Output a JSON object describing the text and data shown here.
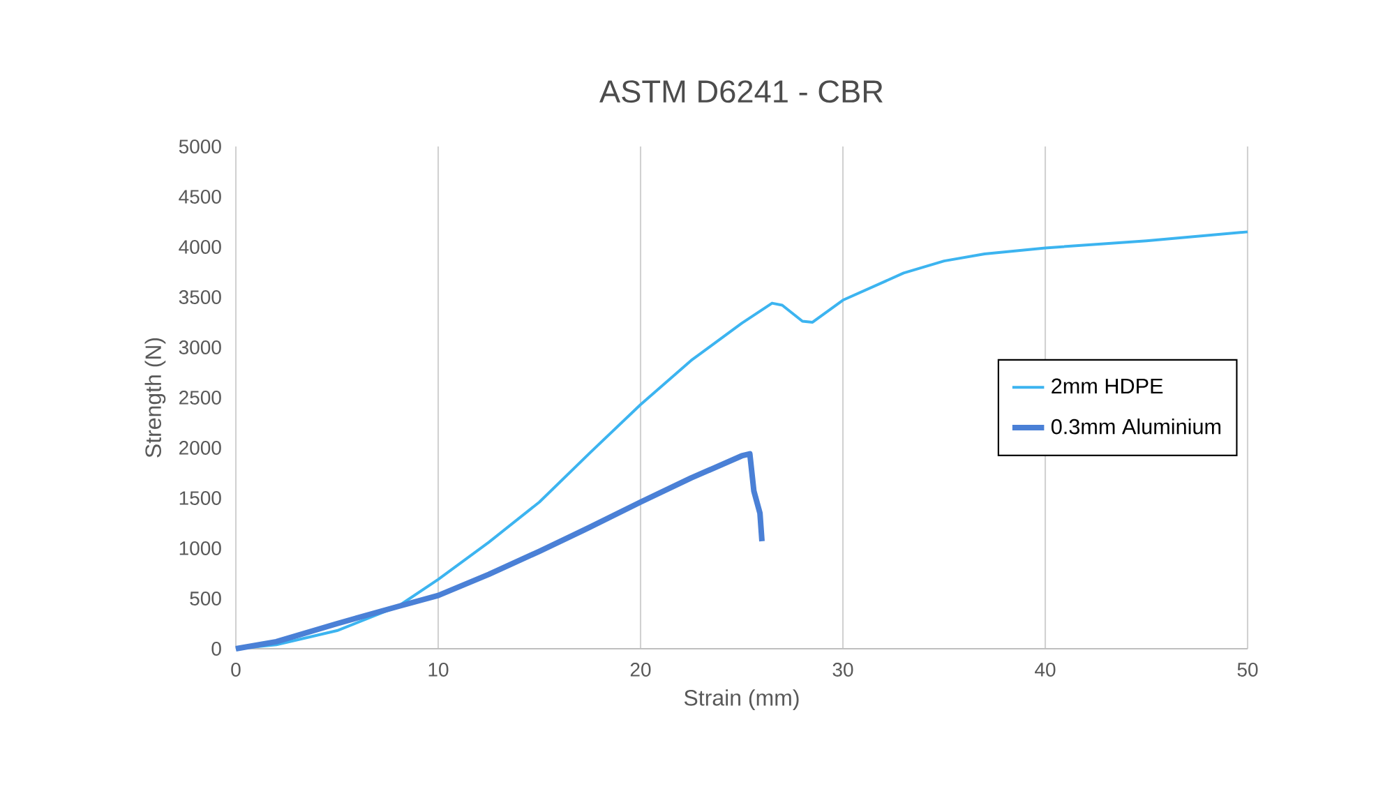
{
  "chart_data": {
    "type": "line",
    "title": "ASTM D6241 - CBR",
    "xlabel": "Strain (mm)",
    "ylabel": "Strength (N)",
    "xlim": [
      0,
      50
    ],
    "xticks": [
      0,
      10,
      20,
      30,
      40,
      50
    ],
    "ylim": [
      0,
      5000
    ],
    "yticks": [
      0,
      500,
      1000,
      1500,
      2000,
      2500,
      3000,
      3500,
      4000,
      4500,
      5000
    ],
    "grid": "x",
    "legend": "right",
    "series": [
      {
        "name": "2mm HDPE",
        "color": "#3cb4f0",
        "x": [
          0,
          2,
          5,
          8,
          10,
          12.5,
          15,
          17.5,
          20,
          22.5,
          25,
          26.5,
          27,
          28,
          28.5,
          30,
          33,
          35,
          37,
          40,
          45,
          50
        ],
        "values": [
          0,
          40,
          180,
          420,
          690,
          1060,
          1460,
          1950,
          2430,
          2870,
          3240,
          3440,
          3420,
          3260,
          3250,
          3470,
          3740,
          3860,
          3930,
          3990,
          4060,
          4150
        ]
      },
      {
        "name": "0.3mm Aluminium",
        "color": "#4a80d6",
        "x": [
          0,
          2,
          5,
          8,
          10,
          12.5,
          15,
          17.5,
          20,
          22.5,
          25,
          25.4,
          25.6,
          25.9,
          26
        ],
        "values": [
          0,
          70,
          250,
          420,
          530,
          740,
          970,
          1210,
          1460,
          1700,
          1920,
          1940,
          1570,
          1350,
          1070
        ]
      }
    ]
  }
}
